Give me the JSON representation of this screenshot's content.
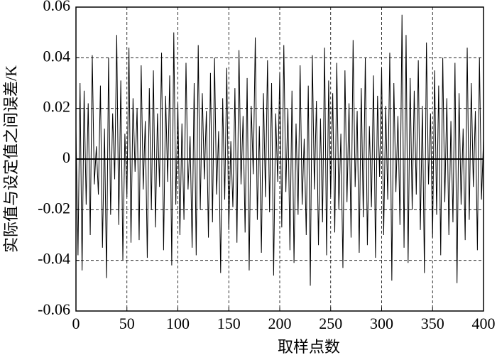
{
  "chart_data": {
    "type": "line",
    "xlabel": "取样点数",
    "ylabel": "实际值与设定值之间误差/K",
    "xlim": [
      0,
      400
    ],
    "ylim": [
      -0.06,
      0.06
    ],
    "xticks": [
      0,
      50,
      100,
      150,
      200,
      250,
      300,
      350,
      400
    ],
    "yticks": [
      0.06,
      0.04,
      0.02,
      0,
      -0.02,
      -0.04,
      -0.06
    ],
    "grid": true,
    "color": "#000000",
    "x": [
      0,
      2,
      4,
      6,
      8,
      10,
      12,
      14,
      16,
      18,
      20,
      22,
      24,
      26,
      28,
      30,
      32,
      34,
      36,
      38,
      40,
      42,
      44,
      46,
      48,
      50,
      52,
      54,
      56,
      58,
      60,
      62,
      64,
      66,
      68,
      70,
      72,
      74,
      76,
      78,
      80,
      82,
      84,
      86,
      88,
      90,
      92,
      94,
      96,
      98,
      100,
      102,
      104,
      106,
      108,
      110,
      112,
      114,
      116,
      118,
      120,
      122,
      124,
      126,
      128,
      130,
      132,
      134,
      136,
      138,
      140,
      142,
      144,
      146,
      148,
      150,
      152,
      154,
      156,
      158,
      160,
      162,
      164,
      166,
      168,
      170,
      172,
      174,
      176,
      178,
      180,
      182,
      184,
      186,
      188,
      190,
      192,
      194,
      196,
      198,
      200,
      202,
      204,
      206,
      208,
      210,
      212,
      214,
      216,
      218,
      220,
      222,
      224,
      226,
      228,
      230,
      232,
      234,
      236,
      238,
      240,
      242,
      244,
      246,
      248,
      250,
      252,
      254,
      256,
      258,
      260,
      262,
      264,
      266,
      268,
      270,
      272,
      274,
      276,
      278,
      280,
      282,
      284,
      286,
      288,
      290,
      292,
      294,
      296,
      298,
      300,
      302,
      304,
      306,
      308,
      310,
      312,
      314,
      316,
      318,
      320,
      322,
      324,
      326,
      328,
      330,
      332,
      334,
      336,
      338,
      340,
      342,
      344,
      346,
      348,
      350,
      352,
      354,
      356,
      358,
      360,
      362,
      364,
      366,
      368,
      370,
      372,
      374,
      376,
      378,
      380,
      382,
      384,
      386,
      388,
      390,
      392,
      394,
      396,
      398,
      400
    ],
    "values": [
      0.012,
      -0.038,
      0.03,
      -0.044,
      0.027,
      -0.018,
      0.022,
      -0.03,
      0.041,
      -0.01,
      0.005,
      -0.014,
      0.029,
      -0.035,
      0.012,
      -0.047,
      0.04,
      -0.022,
      0.018,
      -0.008,
      0.049,
      -0.026,
      0.031,
      -0.04,
      0.01,
      -0.015,
      0.044,
      -0.033,
      0.024,
      -0.005,
      0.02,
      -0.032,
      0.037,
      -0.012,
      0.015,
      -0.039,
      0.028,
      -0.02,
      0.035,
      -0.027,
      0.018,
      -0.011,
      0.042,
      -0.036,
      0.025,
      -0.009,
      0.033,
      -0.042,
      0.05,
      -0.018,
      0.022,
      -0.03,
      0.014,
      -0.024,
      0.038,
      -0.012,
      0.009,
      -0.035,
      0.03,
      -0.038,
      0.045,
      -0.02,
      0.026,
      -0.008,
      0.019,
      -0.031,
      0.034,
      -0.025,
      0.04,
      -0.014,
      0.011,
      -0.045,
      0.024,
      -0.016,
      0.036,
      -0.028,
      0.007,
      -0.019,
      0.028,
      -0.033,
      0.043,
      -0.01,
      0.017,
      -0.029,
      0.032,
      -0.044,
      0.021,
      -0.006,
      0.048,
      -0.024,
      0.013,
      -0.037,
      0.026,
      -0.015,
      0.039,
      -0.021,
      0.03,
      -0.046,
      0.018,
      -0.009,
      0.034,
      -0.027,
      0.045,
      -0.013,
      0.02,
      -0.036,
      0.027,
      -0.041,
      0.014,
      -0.022,
      0.037,
      -0.018,
      0.008,
      -0.03,
      0.029,
      -0.05,
      0.041,
      -0.012,
      0.023,
      -0.034,
      0.016,
      -0.025,
      0.044,
      -0.038,
      0.031,
      -0.015,
      0.026,
      -0.029,
      0.038,
      -0.02,
      0.01,
      -0.043,
      0.035,
      -0.017,
      0.022,
      -0.031,
      0.047,
      -0.011,
      0.019,
      -0.037,
      0.028,
      -0.023,
      0.04,
      -0.034,
      0.013,
      -0.019,
      0.033,
      -0.039,
      0.025,
      -0.007,
      0.036,
      -0.03,
      0.021,
      -0.016,
      0.042,
      -0.048,
      0.03,
      -0.013,
      0.017,
      -0.026,
      0.057,
      -0.035,
      0.049,
      -0.041,
      0.032,
      -0.02,
      0.027,
      -0.014,
      0.039,
      -0.028,
      0.021,
      -0.045,
      0.046,
      -0.01,
      0.018,
      -0.031,
      0.035,
      -0.022,
      0.029,
      -0.038,
      0.04,
      -0.017,
      0.024,
      -0.03,
      0.015,
      -0.025,
      0.038,
      -0.049,
      0.026,
      -0.018,
      0.012,
      -0.032,
      0.044,
      -0.024,
      0.03,
      -0.011,
      0.019,
      -0.036,
      0.04,
      -0.016,
      0.008
    ]
  }
}
